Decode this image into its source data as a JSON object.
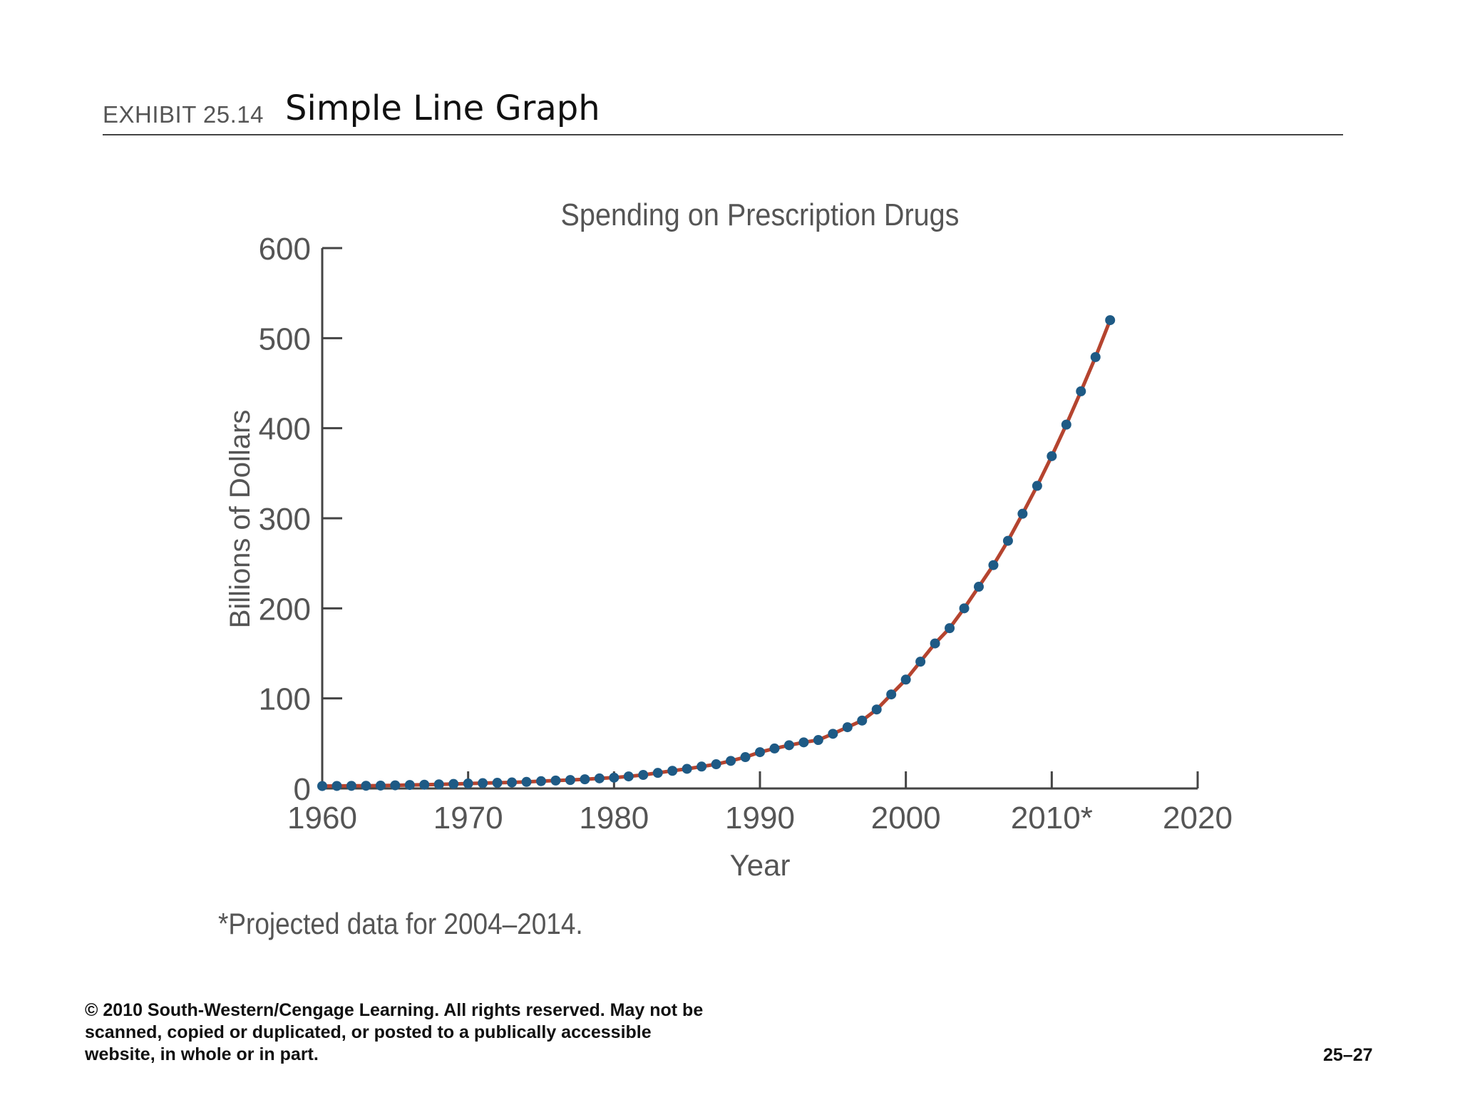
{
  "exhibit": {
    "label": "EXHIBIT 25.14",
    "title": "Simple Line Graph"
  },
  "chart_data": {
    "type": "line",
    "title": "Spending on Prescription Drugs",
    "xlabel": "Year",
    "ylabel": "Billions of Dollars",
    "xlim": [
      1960,
      2020
    ],
    "ylim": [
      0,
      600
    ],
    "x_ticks": [
      1960,
      1970,
      1980,
      1990,
      2000,
      2010,
      2020
    ],
    "x_tick_labels": [
      "1960",
      "1970",
      "1980",
      "1990",
      "2000",
      "2010*",
      "2020"
    ],
    "y_ticks": [
      0,
      100,
      200,
      300,
      400,
      500,
      600
    ],
    "y_tick_labels": [
      "0",
      "100",
      "200",
      "300",
      "400",
      "500",
      "600"
    ],
    "grid": false,
    "line_color": "#b5442f",
    "marker_color": "#1e5a85",
    "axis_color": "#444444",
    "series": [
      {
        "name": "Spending on Prescription Drugs",
        "x": [
          1960,
          1961,
          1962,
          1963,
          1964,
          1965,
          1966,
          1967,
          1968,
          1969,
          1970,
          1971,
          1972,
          1973,
          1974,
          1975,
          1976,
          1977,
          1978,
          1979,
          1980,
          1981,
          1982,
          1983,
          1984,
          1985,
          1986,
          1987,
          1988,
          1989,
          1990,
          1991,
          1992,
          1993,
          1994,
          1995,
          1996,
          1997,
          1998,
          1999,
          2000,
          2001,
          2002,
          2003,
          2004,
          2005,
          2006,
          2007,
          2008,
          2009,
          2010,
          2011,
          2012,
          2013,
          2014
        ],
        "values": [
          2.7,
          2.8,
          2.9,
          3.0,
          3.2,
          3.5,
          3.9,
          4.2,
          4.6,
          5.0,
          5.5,
          5.9,
          6.3,
          6.7,
          7.3,
          8.1,
          8.8,
          9.4,
          10.2,
          11.2,
          12.0,
          13.4,
          15.0,
          17.3,
          19.6,
          21.8,
          24.3,
          26.9,
          30.6,
          34.8,
          40.3,
          44.4,
          48.0,
          51.2,
          53.8,
          60.7,
          68.0,
          75.4,
          87.7,
          104.4,
          120.9,
          140.8,
          161.0,
          178.0,
          200.0,
          224.0,
          248.0,
          275.0,
          305.0,
          336.0,
          369.0,
          404.0,
          441.0,
          479.0,
          520.0
        ]
      }
    ],
    "footnote": "*Projected data for 2004–2014."
  },
  "footer": {
    "copyright_lines": [
      "© 2010 South-Western/Cengage Learning. All rights reserved.  May not be",
      "scanned, copied or duplicated, or posted to a publically accessible",
      "website, in whole or in part."
    ],
    "page_number": "25–27"
  }
}
